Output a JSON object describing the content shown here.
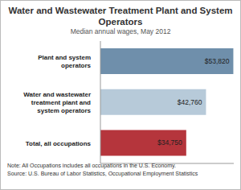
{
  "chart_data": {
    "type": "bar",
    "orientation": "horizontal",
    "title": "Water and Wastewater Treatment Plant and System Operators",
    "subtitle": "Median annual wages, May 2012",
    "categories": [
      "Plant and system operators",
      "Water and wastewater treatment plant and system operators",
      "Total, all occupations"
    ],
    "values": [
      53820,
      42760,
      34750
    ],
    "value_labels": [
      "$53,820",
      "$42,760",
      "$34,750"
    ],
    "colors": [
      "#6f8fab",
      "#b7cad9",
      "#b5353c"
    ],
    "data_labels": true,
    "tick_labels": "y",
    "xlim": [
      0,
      54000
    ],
    "annotations": [
      "Note: All Occupations includes all occupations in the U.S. Economy.",
      "Source: U.S. Bureau of Labor Statistics, Occupational Employment Statistics"
    ]
  }
}
